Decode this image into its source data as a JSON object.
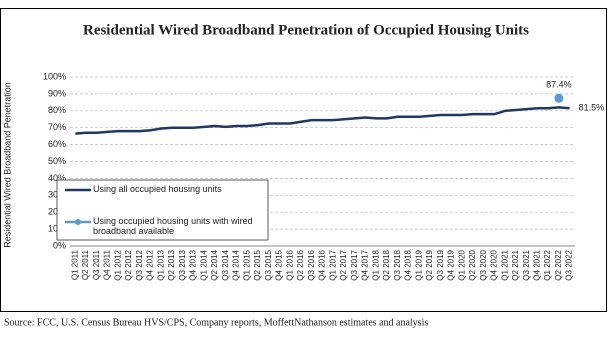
{
  "chart_data": {
    "type": "line",
    "title": "Residential Wired Broadband Penetration of Occupied Housing Units",
    "y_label": "Residential Wired Broadband Penetration",
    "source": "Source: FCC, U.S. Census Bureau HVS/CPS, Company reports, MoffettNathanson estimates and analysis",
    "categories": [
      "Q1 2011",
      "Q2 2011",
      "Q3 2011",
      "Q4 2011",
      "Q1 2012",
      "Q2 2012",
      "Q3 2012",
      "Q4 2012",
      "Q1 2013",
      "Q2 2013",
      "Q3 2013",
      "Q4 2013",
      "Q1 2014",
      "Q2 2014",
      "Q3 2014",
      "Q4 2014",
      "Q1 2015",
      "Q2 2015",
      "Q3 2015",
      "Q4 2015",
      "Q1 2016",
      "Q2 2016",
      "Q3 2016",
      "Q4 2016",
      "Q1 2017",
      "Q2 2017",
      "Q3 2017",
      "Q4 2017",
      "Q1 2018",
      "Q2 2018",
      "Q3 2018",
      "Q4 2018",
      "Q1 2019",
      "Q2 2019",
      "Q3 2019",
      "Q4 2019",
      "Q1 2020",
      "Q2 2020",
      "Q3 2020",
      "Q4 2020",
      "Q1 2021",
      "Q2 2021",
      "Q3 2021",
      "Q4 2021",
      "Q1 2022",
      "Q2 2022",
      "Q3 2022"
    ],
    "series": [
      {
        "name": "Using all occupied housing units",
        "color": "#1f3864",
        "values": [
          66.5,
          67,
          67,
          67.5,
          68,
          68,
          68,
          68.5,
          69.5,
          70,
          70,
          70,
          70.5,
          71,
          70.5,
          71,
          71,
          71.5,
          72.5,
          72.5,
          72.5,
          73.5,
          74.5,
          74.5,
          74.5,
          75,
          75.5,
          76,
          75.5,
          75.5,
          76.5,
          76.5,
          76.5,
          77,
          77.5,
          77.5,
          77.5,
          78,
          78,
          78,
          80,
          80.5,
          81,
          81.5,
          81.5,
          82,
          81.5
        ],
        "value_labels": [
          null,
          null,
          null,
          null,
          null,
          null,
          null,
          null,
          null,
          null,
          null,
          null,
          null,
          null,
          null,
          null,
          null,
          null,
          null,
          null,
          null,
          null,
          null,
          null,
          null,
          null,
          null,
          null,
          null,
          null,
          null,
          null,
          null,
          null,
          null,
          null,
          null,
          null,
          null,
          null,
          null,
          null,
          null,
          null,
          null,
          null,
          "81.5%"
        ]
      },
      {
        "name": "Using occupied housing units with wired broadband available",
        "color": "#5b9bd5",
        "values": [
          null,
          null,
          null,
          null,
          null,
          null,
          null,
          null,
          null,
          null,
          null,
          null,
          null,
          null,
          null,
          null,
          null,
          null,
          null,
          null,
          null,
          null,
          null,
          null,
          null,
          null,
          null,
          null,
          null,
          null,
          null,
          null,
          null,
          null,
          null,
          null,
          null,
          null,
          null,
          null,
          null,
          null,
          null,
          null,
          null,
          87.4,
          null
        ],
        "value_labels": [
          null,
          null,
          null,
          null,
          null,
          null,
          null,
          null,
          null,
          null,
          null,
          null,
          null,
          null,
          null,
          null,
          null,
          null,
          null,
          null,
          null,
          null,
          null,
          null,
          null,
          null,
          null,
          null,
          null,
          null,
          null,
          null,
          null,
          null,
          null,
          null,
          null,
          null,
          null,
          null,
          null,
          null,
          null,
          null,
          null,
          "87.4%",
          null
        ]
      }
    ],
    "ylim": [
      0,
      100
    ],
    "yticks": [
      {
        "value": 0,
        "label": "0%"
      },
      {
        "value": 10,
        "label": "10%"
      },
      {
        "value": 20,
        "label": "20%"
      },
      {
        "value": 30,
        "label": "30%"
      },
      {
        "value": 40,
        "label": "40%"
      },
      {
        "value": 50,
        "label": "50%"
      },
      {
        "value": 60,
        "label": "60%"
      },
      {
        "value": 70,
        "label": "70%"
      },
      {
        "value": 80,
        "label": "80%"
      },
      {
        "value": 90,
        "label": "90%"
      },
      {
        "value": 100,
        "label": "100%"
      }
    ],
    "grid": true,
    "legend": "lower left"
  }
}
